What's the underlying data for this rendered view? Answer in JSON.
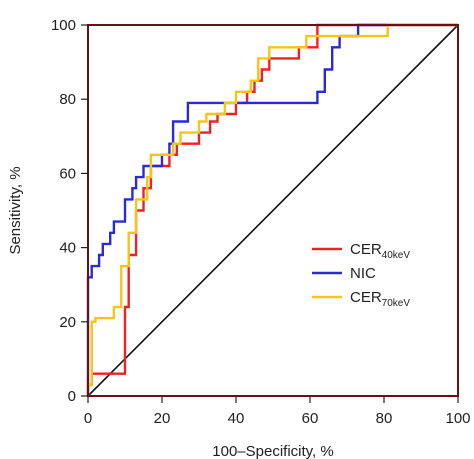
{
  "chart_data": {
    "type": "line",
    "title": "",
    "xlabel": "100–Specificity, %",
    "ylabel": "Sensitivity, %",
    "xlim": [
      0,
      100
    ],
    "ylim": [
      0,
      100
    ],
    "xticks": [
      0,
      20,
      40,
      60,
      80,
      100
    ],
    "yticks": [
      0,
      20,
      40,
      60,
      80,
      100
    ],
    "grid": false,
    "legend_position": "lower-right",
    "frame_color": "#6b1010",
    "reference_line": {
      "x": [
        0,
        100
      ],
      "y": [
        0,
        100
      ],
      "color": "#111111"
    },
    "series": [
      {
        "name": "CER",
        "subscript": "40keV",
        "color": "#ee2222",
        "x": [
          0,
          0,
          1,
          1,
          10,
          10,
          11,
          11,
          13,
          13,
          15,
          15,
          17,
          17,
          22,
          22,
          24,
          24,
          26,
          26,
          30,
          30,
          33,
          33,
          35,
          35,
          40,
          40,
          43,
          43,
          45,
          45,
          47,
          47,
          49,
          49,
          53,
          53,
          57,
          57,
          62,
          62,
          72,
          72,
          100
        ],
        "y": [
          0,
          3,
          3,
          6,
          6,
          24,
          24,
          38,
          38,
          50,
          50,
          56,
          56,
          62,
          62,
          65,
          65,
          68,
          68,
          68,
          68,
          71,
          71,
          74,
          74,
          76,
          76,
          79,
          79,
          82,
          82,
          85,
          85,
          88,
          88,
          91,
          91,
          91,
          91,
          94,
          94,
          100,
          100,
          100,
          100
        ]
      },
      {
        "name": "NIC",
        "subscript": "",
        "color": "#2a2ad6",
        "x": [
          0,
          0,
          1,
          1,
          3,
          3,
          4,
          4,
          6,
          6,
          7,
          7,
          10,
          10,
          12,
          12,
          13,
          13,
          15,
          15,
          20,
          20,
          22,
          22,
          23,
          23,
          27,
          27,
          40,
          40,
          62,
          62,
          64,
          64,
          66,
          66,
          68,
          68,
          73,
          73,
          80,
          100
        ],
        "y": [
          0,
          32,
          32,
          35,
          35,
          38,
          38,
          41,
          41,
          44,
          44,
          47,
          47,
          53,
          53,
          56,
          56,
          59,
          59,
          62,
          62,
          65,
          65,
          68,
          68,
          74,
          74,
          79,
          79,
          79,
          79,
          82,
          82,
          88,
          88,
          94,
          94,
          97,
          97,
          100,
          100,
          100
        ]
      },
      {
        "name": "CER",
        "subscript": "70keV",
        "color": "#f5c518",
        "x": [
          0,
          0,
          1,
          1,
          2,
          2,
          7,
          7,
          9,
          9,
          11,
          11,
          13,
          13,
          16,
          16,
          17,
          17,
          23,
          23,
          25,
          25,
          30,
          30,
          32,
          32,
          37,
          37,
          40,
          40,
          44,
          44,
          46,
          46,
          49,
          49,
          59,
          59,
          81,
          81,
          100
        ],
        "y": [
          0,
          3,
          3,
          20,
          20,
          21,
          21,
          24,
          24,
          35,
          35,
          44,
          44,
          53,
          53,
          59,
          59,
          65,
          65,
          68,
          68,
          71,
          71,
          74,
          74,
          76,
          76,
          79,
          79,
          82,
          82,
          85,
          85,
          91,
          91,
          94,
          94,
          97,
          97,
          100,
          100
        ]
      }
    ]
  }
}
